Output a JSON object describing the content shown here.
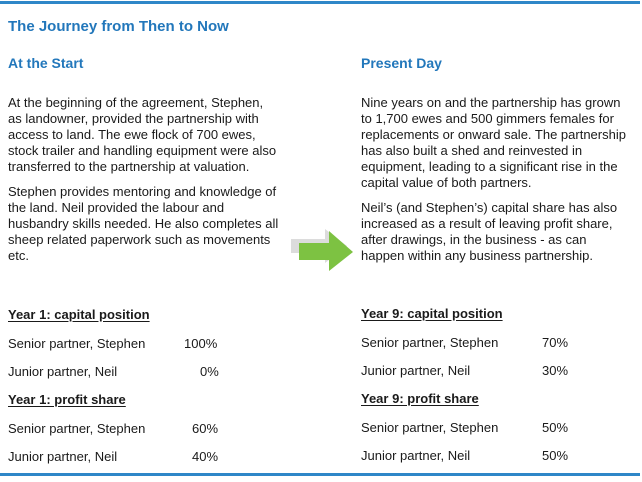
{
  "title": "The Journey from Then to Now",
  "left": {
    "heading": "At the Start",
    "paragraphs": [
      "At the beginning of the agreement, Stephen, as landowner, provided the partnership with access to land.  The ewe flock of 700 ewes, stock trailer and handling equipment were also transferred to the partnership at valuation.",
      "Stephen provides mentoring and knowledge of the land.  Neil provided the labour and husbandry skills needed.  He also completes all sheep related paperwork such as movements etc."
    ],
    "capital": {
      "heading": "Year 1: capital position",
      "rows": [
        {
          "label": "Senior partner, Stephen",
          "value": "100%"
        },
        {
          "label": "Junior partner, Neil",
          "value": "0%"
        }
      ]
    },
    "profit": {
      "heading": "Year 1: profit share",
      "rows": [
        {
          "label": "Senior partner, Stephen",
          "value": "60%"
        },
        {
          "label": "Junior partner, Neil",
          "value": "40%"
        }
      ]
    }
  },
  "right": {
    "heading": "Present Day",
    "paragraphs": [
      "Nine years on and the partnership has grown to 1,700 ewes and 500 gimmers females for replacements or onward sale.  The partnership has also built a shed and reinvested in equipment, leading to a significant rise in the capital value of both partners.",
      "Neil’s (and Stephen’s) capital share has also increased as a result of leaving profit share, after drawings, in the business - as can happen within any business partnership."
    ],
    "capital": {
      "heading": "Year 9: capital position",
      "rows": [
        {
          "label": "Senior partner, Stephen",
          "value": "70%"
        },
        {
          "label": "Junior partner, Neil",
          "value": "30%"
        }
      ]
    },
    "profit": {
      "heading": "Year 9: profit share",
      "rows": [
        {
          "label": "Senior partner, Stephen",
          "value": "50%"
        },
        {
          "label": "Junior partner, Neil",
          "value": "50%"
        }
      ]
    }
  },
  "colors": {
    "accent": "#2277bb",
    "rule": "#2e87c8",
    "arrow_green": "#7dc242",
    "arrow_shadow": "#d9d9d9"
  },
  "icons": {
    "arrow": "right-arrow-icon"
  }
}
